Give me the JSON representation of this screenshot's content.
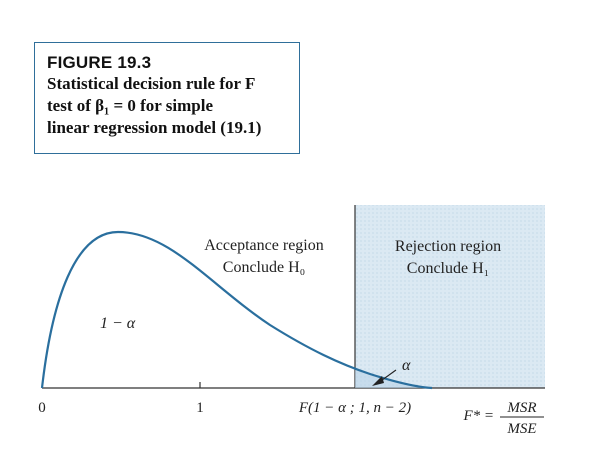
{
  "figure": {
    "label": "FIGURE 19.3",
    "caption_lines": [
      "Statistical decision rule for F",
      "test of β₁ = 0 for simple",
      "linear regression model (19.1)"
    ]
  },
  "diagram": {
    "acceptance_region": {
      "title": "Acceptance region",
      "conclusion": "Conclude H₀"
    },
    "rejection_region": {
      "title": "Rejection region",
      "conclusion": "Conclude H₁"
    },
    "area_labels": {
      "acceptance_area": "1 − α",
      "tail_area": "α"
    },
    "x_axis_labels": {
      "zero": "0",
      "one": "1",
      "critical_value": "F(1 − α ; 1, n − 2)"
    },
    "statistic": {
      "name": "F* =",
      "numerator": "MSR",
      "denominator": "MSE"
    },
    "colors": {
      "curve": "#2a6f9e",
      "rejection_fill": "#dbe9f3",
      "frame": "#2f6f9a",
      "axis": "#333333"
    }
  }
}
